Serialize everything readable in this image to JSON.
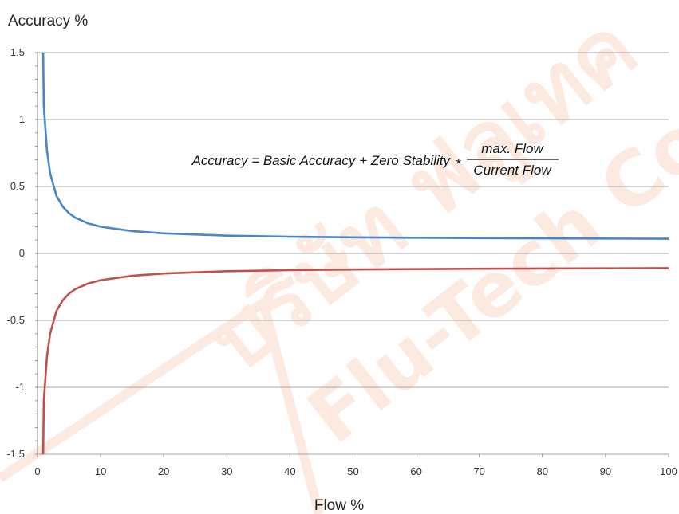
{
  "chart_data": {
    "type": "line",
    "title": "",
    "ylabel": "Accuracy %",
    "xlabel": "Flow %",
    "xlim": [
      0,
      100
    ],
    "ylim": [
      -1.5,
      1.5
    ],
    "xticks": [
      "0",
      "10",
      "20",
      "30",
      "40",
      "50",
      "60",
      "70",
      "80",
      "90",
      "100"
    ],
    "yticks": [
      "1.5",
      "1",
      "0.5",
      "0",
      "-0.5",
      "-1",
      "-1.5"
    ],
    "grid": true,
    "formula": {
      "lhs": "Accuracy = Basic Accuracy + Zero Stability",
      "operator": "*",
      "numerator": "max. Flow",
      "denominator": "Current Flow"
    },
    "series": [
      {
        "color": "#4a86c5",
        "x": [
          0.9,
          1,
          1.5,
          2,
          3,
          4,
          5,
          6,
          8,
          10,
          15,
          20,
          30,
          40,
          50,
          60,
          70,
          80,
          90,
          100
        ],
        "y": [
          1.5,
          1.1,
          0.77,
          0.6,
          0.43,
          0.35,
          0.3,
          0.267,
          0.225,
          0.2,
          0.167,
          0.15,
          0.133,
          0.125,
          0.12,
          0.117,
          0.114,
          0.113,
          0.111,
          0.11
        ]
      },
      {
        "color": "#c0504d",
        "x": [
          0.9,
          1,
          1.5,
          2,
          3,
          4,
          5,
          6,
          8,
          10,
          15,
          20,
          30,
          40,
          50,
          60,
          70,
          80,
          90,
          100
        ],
        "y": [
          -1.5,
          -1.1,
          -0.77,
          -0.6,
          -0.43,
          -0.35,
          -0.3,
          -0.267,
          -0.225,
          -0.2,
          -0.167,
          -0.15,
          -0.133,
          -0.125,
          -0.12,
          -0.117,
          -0.114,
          -0.113,
          -0.111,
          -0.11
        ]
      }
    ]
  }
}
